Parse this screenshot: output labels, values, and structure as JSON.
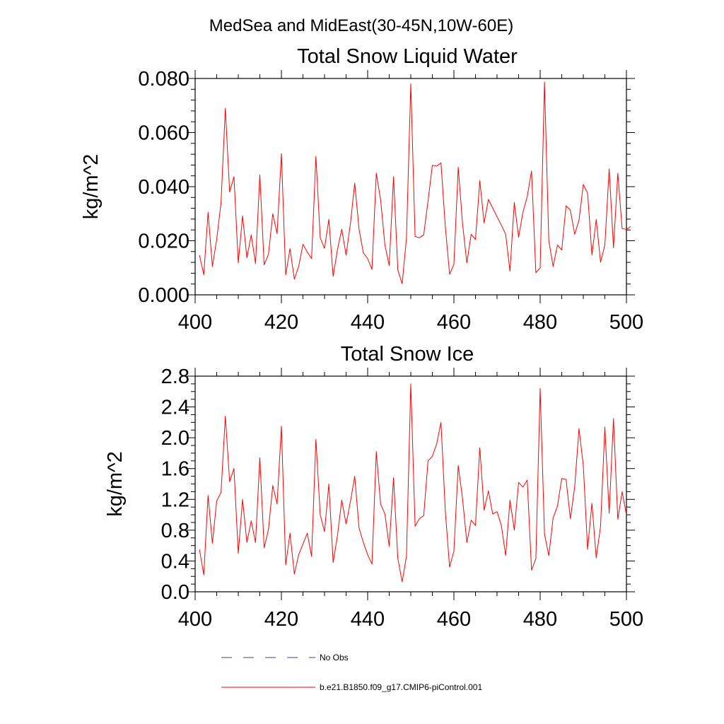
{
  "header": {
    "title": "MedSea and MidEast(30-45N,10W-60E)"
  },
  "legend": {
    "entries": [
      {
        "label": "No Obs",
        "color": "#3b3f8f",
        "style": "dashed"
      },
      {
        "label": "b.e21.B1850.f09_g17.CMIP6-piControl.001",
        "color": "#ff0000",
        "style": "solid"
      }
    ]
  },
  "chart_data": [
    {
      "type": "line",
      "title": "Total Snow Liquid Water",
      "xlabel": "",
      "ylabel": "kg/m^2",
      "xlim": [
        400,
        500
      ],
      "ylim": [
        0,
        0.08
      ],
      "xticks": [
        400,
        420,
        440,
        460,
        480,
        500
      ],
      "xtick_labels": [
        "400",
        "420",
        "440",
        "460",
        "480",
        "500"
      ],
      "yticks": [
        0,
        0.02,
        0.04,
        0.06,
        0.08
      ],
      "ytick_labels": [
        "0.000",
        "0.020",
        "0.040",
        "0.060",
        "0.080"
      ],
      "grid": false,
      "series": [
        {
          "name": "b.e21.B1850.f09_g17.CMIP6-piControl.001",
          "color": "#ff0000",
          "x_start": 401,
          "x_step": 1,
          "values": [
            0.0147,
            0.0074,
            0.0305,
            0.0105,
            0.0205,
            0.034,
            0.069,
            0.038,
            0.0437,
            0.0118,
            0.0292,
            0.0137,
            0.0222,
            0.0116,
            0.0443,
            0.0111,
            0.015,
            0.03,
            0.0226,
            0.0522,
            0.0074,
            0.0171,
            0.0058,
            0.0105,
            0.0187,
            0.0158,
            0.0134,
            0.0512,
            0.0211,
            0.0172,
            0.0279,
            0.0068,
            0.0167,
            0.0243,
            0.0147,
            0.0263,
            0.0413,
            0.0243,
            0.0155,
            0.0134,
            0.0094,
            0.045,
            0.0352,
            0.0184,
            0.0108,
            0.0437,
            0.0092,
            0.0041,
            0.021,
            0.078,
            0.0216,
            0.0211,
            0.0222,
            0.0347,
            0.0479,
            0.0476,
            0.0488,
            0.0253,
            0.0076,
            0.0113,
            0.0472,
            0.0263,
            0.0118,
            0.0224,
            0.0205,
            0.0422,
            0.0266,
            0.0353,
            0.0321,
            0.0289,
            0.0258,
            0.0224,
            0.0087,
            0.0342,
            0.0213,
            0.0305,
            0.0363,
            0.0458,
            0.0082,
            0.01,
            0.0787,
            0.02,
            0.0105,
            0.0184,
            0.0166,
            0.0329,
            0.0313,
            0.0224,
            0.0276,
            0.0408,
            0.0376,
            0.0147,
            0.0279,
            0.0121,
            0.0184,
            0.0466,
            0.0174,
            0.045,
            0.0245,
            0.0242,
            0.0253
          ]
        }
      ]
    },
    {
      "type": "line",
      "title": "Total Snow Ice",
      "xlabel": "",
      "ylabel": "kg/m^2",
      "xlim": [
        400,
        500
      ],
      "ylim": [
        0,
        2.8
      ],
      "xticks": [
        400,
        420,
        440,
        460,
        480,
        500
      ],
      "xtick_labels": [
        "400",
        "420",
        "440",
        "460",
        "480",
        "500"
      ],
      "yticks": [
        0,
        0.4,
        0.8,
        1.2,
        1.6,
        2.0,
        2.4,
        2.8
      ],
      "ytick_labels": [
        "0.0",
        "0.4",
        "0.8",
        "1.2",
        "1.6",
        "2.0",
        "2.4",
        "2.8"
      ],
      "grid": false,
      "series": [
        {
          "name": "b.e21.B1850.f09_g17.CMIP6-piControl.001",
          "color": "#ff0000",
          "x_start": 401,
          "x_step": 1,
          "values": [
            0.55,
            0.22,
            1.25,
            0.63,
            1.18,
            1.29,
            2.28,
            1.43,
            1.6,
            0.5,
            1.2,
            0.64,
            0.92,
            0.64,
            1.74,
            0.57,
            0.81,
            1.38,
            1.14,
            2.15,
            0.35,
            0.76,
            0.23,
            0.48,
            0.62,
            0.76,
            0.46,
            1.98,
            1.0,
            0.78,
            1.4,
            0.38,
            0.73,
            1.19,
            0.88,
            1.17,
            1.5,
            0.83,
            0.64,
            0.48,
            0.36,
            1.82,
            1.14,
            1.01,
            0.59,
            1.48,
            0.43,
            0.13,
            0.46,
            2.7,
            0.85,
            0.95,
            0.99,
            1.7,
            1.76,
            1.92,
            2.2,
            1.05,
            0.32,
            0.53,
            1.64,
            1.21,
            0.64,
            0.93,
            0.86,
            1.87,
            1.06,
            1.31,
            1.01,
            1.04,
            0.86,
            0.47,
            1.19,
            0.8,
            1.42,
            1.36,
            1.45,
            0.28,
            0.43,
            2.64,
            0.75,
            0.47,
            0.96,
            1.11,
            1.47,
            1.46,
            0.95,
            1.36,
            2.12,
            1.64,
            0.55,
            1.15,
            0.44,
            0.85,
            2.14,
            1.02,
            2.25,
            0.94,
            1.3,
            1.0
          ]
        }
      ]
    }
  ]
}
